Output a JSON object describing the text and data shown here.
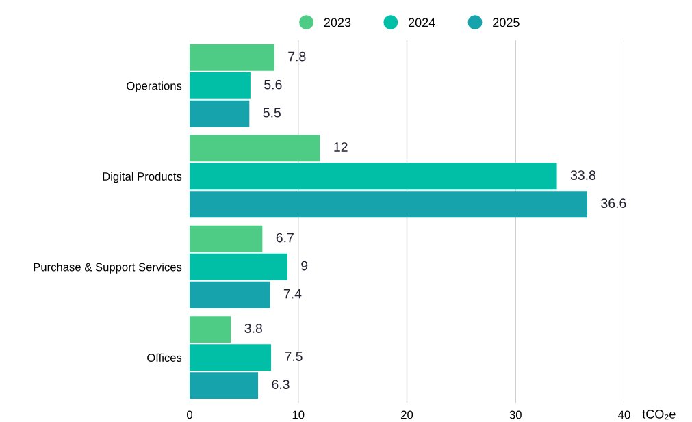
{
  "chart_data": {
    "type": "bar",
    "orientation": "horizontal",
    "categories": [
      "Operations",
      "Digital Products",
      "Purchase & Support Services",
      "Offices"
    ],
    "series": [
      {
        "name": "2023",
        "color": "#4ecb84",
        "values": [
          7.8,
          12,
          6.7,
          3.8
        ]
      },
      {
        "name": "2024",
        "color": "#00bfa6",
        "values": [
          5.6,
          33.8,
          9,
          7.5
        ]
      },
      {
        "name": "2025",
        "color": "#17a3ab",
        "values": [
          5.5,
          36.6,
          7.4,
          6.3
        ]
      }
    ],
    "xlim": [
      0,
      40
    ],
    "xticks": [
      0,
      10,
      20,
      30,
      40
    ],
    "xlabel": "tCO₂e",
    "grid": "x",
    "legend": "top",
    "data_labels": true
  }
}
